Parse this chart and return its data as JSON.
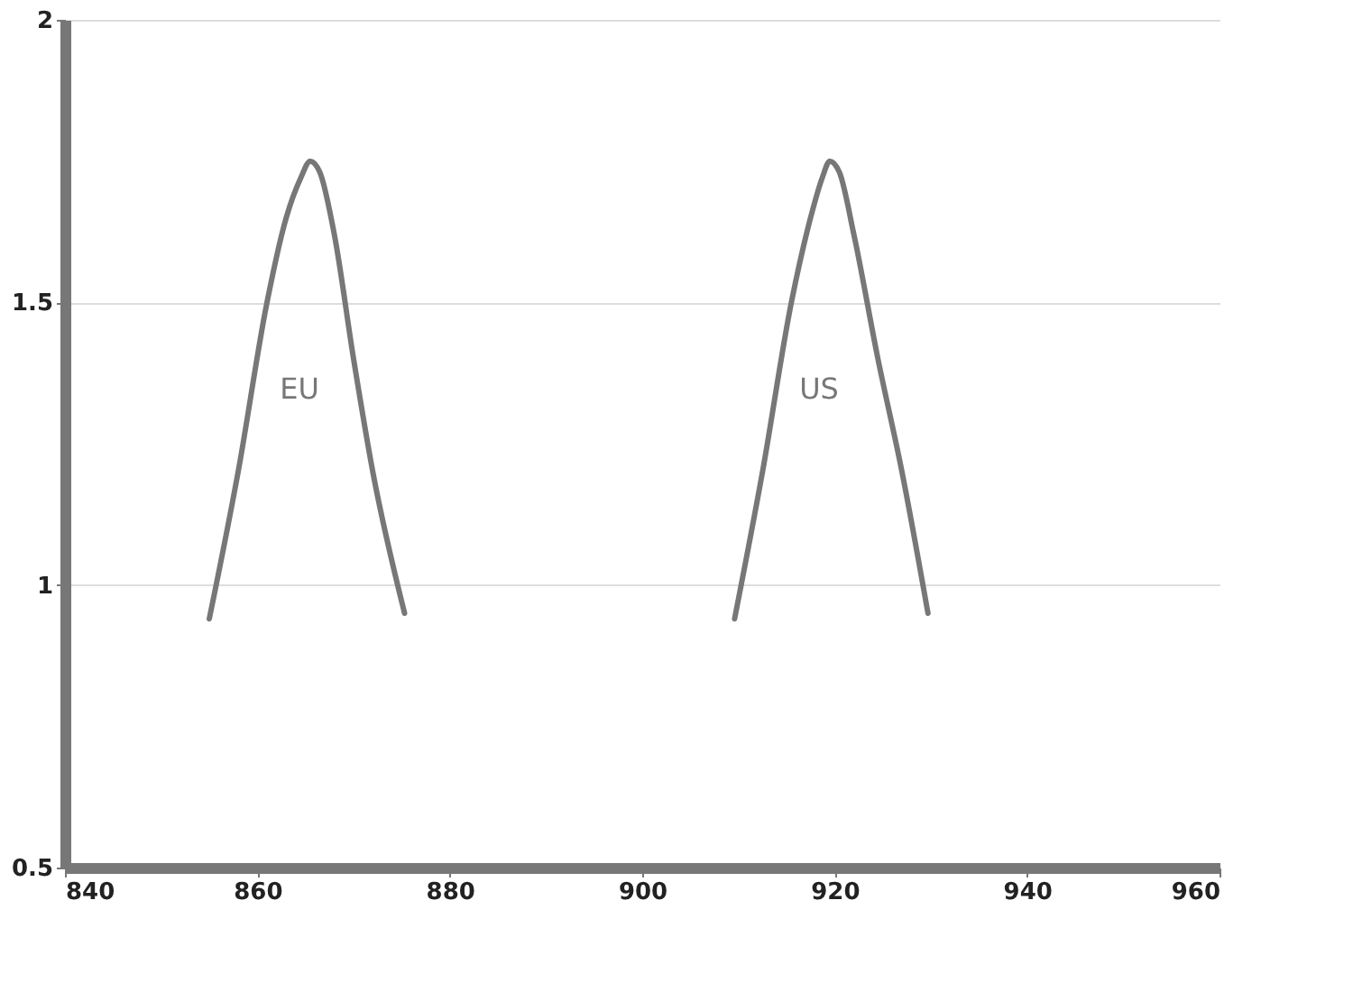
{
  "chart_data": {
    "type": "line",
    "xlim": [
      840,
      960
    ],
    "xticks": [
      840,
      860,
      880,
      900,
      920,
      940,
      960
    ],
    "ylim": [
      0.5,
      2
    ],
    "yticks": [
      0.5,
      1,
      1.5,
      2
    ],
    "grid": "y",
    "line_style": "solid",
    "series": [
      {
        "name": "EU",
        "color": "#777777",
        "x": [
          855,
          858,
          861,
          863,
          864.5,
          865.5,
          866.5,
          868,
          870,
          872,
          875.3
        ],
        "values": [
          0.94,
          1.2,
          1.5,
          1.65,
          1.72,
          1.75,
          1.73,
          1.62,
          1.4,
          1.2,
          0.95
        ]
      },
      {
        "name": "US",
        "color": "#777777",
        "x": [
          909.6,
          912.5,
          915.5,
          917.5,
          918.7,
          919.5,
          920.5,
          922,
          924.5,
          927,
          929.7
        ],
        "values": [
          0.94,
          1.2,
          1.5,
          1.65,
          1.72,
          1.75,
          1.73,
          1.62,
          1.4,
          1.2,
          0.95
        ]
      }
    ]
  }
}
